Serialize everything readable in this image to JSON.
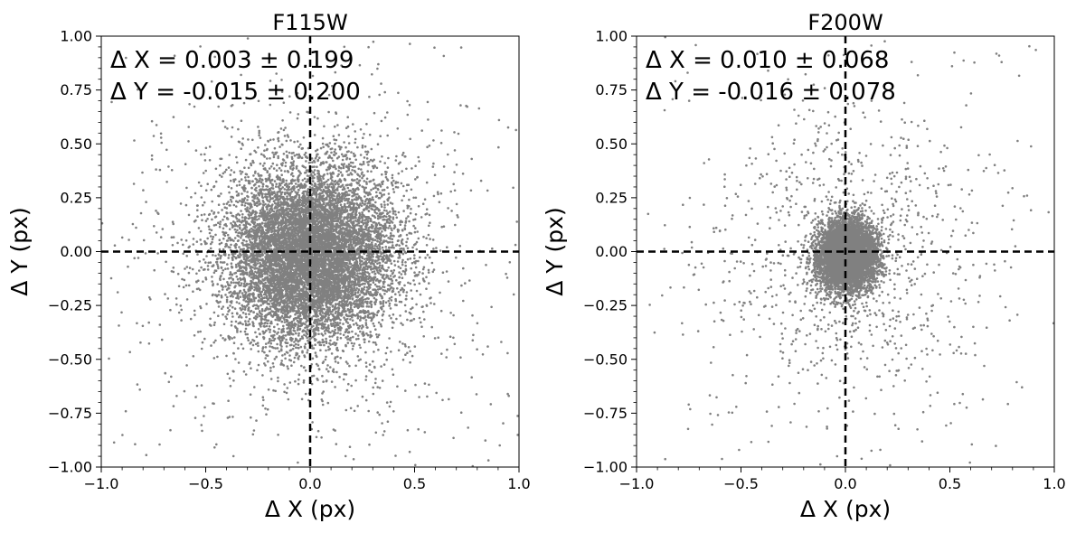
{
  "chart_data": [
    {
      "type": "scatter",
      "title": "F115W",
      "xlabel": "Δ X (px)",
      "ylabel": "Δ Y (px)",
      "xlim": [
        -1.0,
        1.0
      ],
      "ylim": [
        -1.0,
        1.0
      ],
      "xticks": [
        "−1.0",
        "−0.5",
        "0.0",
        "0.5",
        "1.0"
      ],
      "yticks": [
        "−1.00",
        "−0.75",
        "−0.50",
        "−0.25",
        "0.00",
        "0.25",
        "0.50",
        "0.75",
        "1.00"
      ],
      "annotations": [
        "Δ X = 0.003 ± 0.199",
        "Δ Y = -0.015 ± 0.200"
      ],
      "reference_lines": {
        "x": 0.0,
        "y": 0.0,
        "style": "dashed"
      },
      "marker_color": "#808080",
      "distribution": {
        "mean_x": 0.003,
        "std_x": 0.199,
        "mean_y": -0.015,
        "std_y": 0.2
      },
      "grid": false
    },
    {
      "type": "scatter",
      "title": "F200W",
      "xlabel": "Δ X (px)",
      "ylabel": "Δ Y (px)",
      "xlim": [
        -1.0,
        1.0
      ],
      "ylim": [
        -1.0,
        1.0
      ],
      "xticks": [
        "−1.0",
        "−0.5",
        "0.0",
        "0.5",
        "1.0"
      ],
      "yticks": [
        "−1.00",
        "−0.75",
        "−0.50",
        "−0.25",
        "0.00",
        "0.25",
        "0.50",
        "0.75",
        "1.00"
      ],
      "annotations": [
        "Δ X = 0.010 ± 0.068",
        "Δ Y = -0.016 ± 0.078"
      ],
      "reference_lines": {
        "x": 0.0,
        "y": 0.0,
        "style": "dashed"
      },
      "marker_color": "#808080",
      "distribution": {
        "mean_x": 0.01,
        "std_x": 0.068,
        "mean_y": -0.016,
        "std_y": 0.078
      },
      "grid": false
    }
  ]
}
